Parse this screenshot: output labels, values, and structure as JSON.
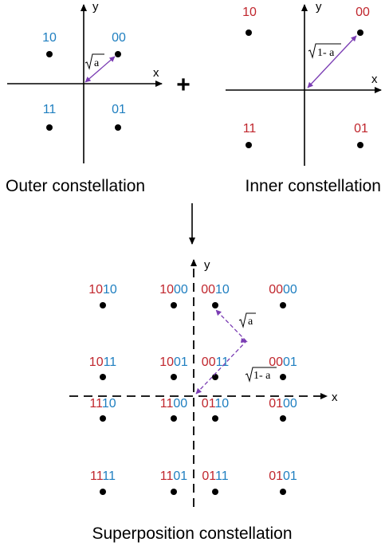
{
  "colors": {
    "blue": "#1f7fc0",
    "red": "#c0262d",
    "purple": "#7a3cb3",
    "black": "#000000"
  },
  "outer": {
    "axis_x": "x",
    "axis_y": "y",
    "points": [
      {
        "bits": "10"
      },
      {
        "bits": "00"
      },
      {
        "bits": "11"
      },
      {
        "bits": "01"
      }
    ],
    "vector_label": "a",
    "caption": "Outer constellation"
  },
  "plus_sign": "+",
  "inner": {
    "axis_x": "x",
    "axis_y": "y",
    "points": [
      {
        "bits": "10"
      },
      {
        "bits": "00"
      },
      {
        "bits": "11"
      },
      {
        "bits": "01"
      }
    ],
    "vector_label": "1- a",
    "caption": "Inner constellation"
  },
  "superposition": {
    "axis_x": "x",
    "axis_y": "y",
    "points": [
      {
        "red": "10",
        "blue": "10"
      },
      {
        "red": "10",
        "blue": "00"
      },
      {
        "red": "00",
        "blue": "10"
      },
      {
        "red": "00",
        "blue": "00"
      },
      {
        "red": "10",
        "blue": "11"
      },
      {
        "red": "10",
        "blue": "01"
      },
      {
        "red": "00",
        "blue": "11"
      },
      {
        "red": "00",
        "blue": "01"
      },
      {
        "red": "11",
        "blue": "10"
      },
      {
        "red": "11",
        "blue": "00"
      },
      {
        "red": "01",
        "blue": "10"
      },
      {
        "red": "01",
        "blue": "00"
      },
      {
        "red": "11",
        "blue": "11"
      },
      {
        "red": "11",
        "blue": "01"
      },
      {
        "red": "01",
        "blue": "11"
      },
      {
        "red": "01",
        "blue": "01"
      }
    ],
    "vector_label_outer": "a",
    "vector_label_inner": "1- a",
    "caption": "Superposition constellation"
  }
}
